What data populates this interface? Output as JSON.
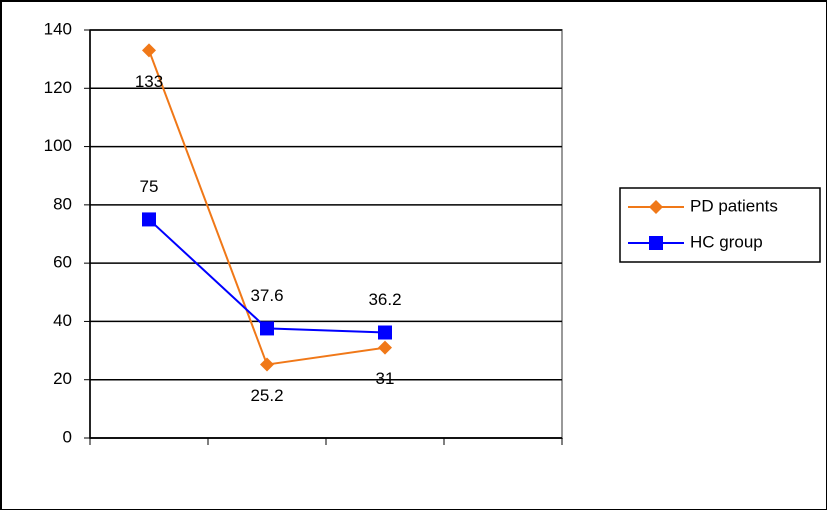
{
  "chart_data": {
    "type": "line",
    "categories": [
      null,
      null,
      null,
      null
    ],
    "series": [
      {
        "name": "PD patients",
        "color": "#f07818",
        "marker": "diamond",
        "values": [
          133,
          25.2,
          31,
          null
        ]
      },
      {
        "name": "HC group",
        "color": "#0000ff",
        "marker": "square",
        "values": [
          75,
          37.6,
          36.2,
          null
        ]
      }
    ],
    "ylim": [
      0,
      140
    ],
    "yticks": [
      0,
      20,
      40,
      60,
      80,
      100,
      120,
      140
    ],
    "grid": true,
    "legend": "right"
  }
}
